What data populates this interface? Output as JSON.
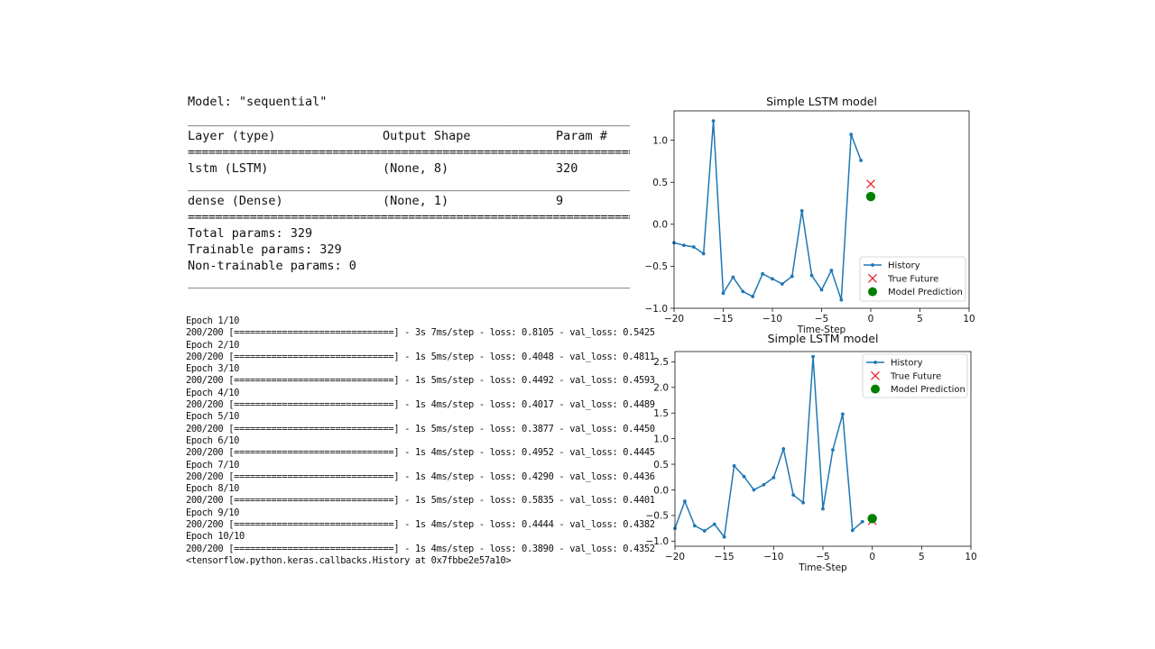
{
  "summary": {
    "title": "Model: \"sequential\"",
    "rule_dash": "_________________________________________________________________",
    "rule_eq": "=================================================================",
    "header": {
      "layer": "Layer (type)",
      "output": "Output Shape",
      "params": "Param #"
    },
    "layers": [
      {
        "layer": "lstm (LSTM)",
        "output": "(None, 8)",
        "params": "320"
      },
      {
        "layer": "dense (Dense)",
        "output": "(None, 1)",
        "params": "9"
      }
    ],
    "total": "Total params: 329",
    "trainable": "Trainable params: 329",
    "non_trainable": "Non-trainable params: 0"
  },
  "training_log": {
    "lines": [
      "Epoch 1/10",
      "200/200 [==============================] - 3s 7ms/step - loss: 0.8105 - val_loss: 0.5425",
      "Epoch 2/10",
      "200/200 [==============================] - 1s 5ms/step - loss: 0.4048 - val_loss: 0.4811",
      "Epoch 3/10",
      "200/200 [==============================] - 1s 5ms/step - loss: 0.4492 - val_loss: 0.4593",
      "Epoch 4/10",
      "200/200 [==============================] - 1s 4ms/step - loss: 0.4017 - val_loss: 0.4489",
      "Epoch 5/10",
      "200/200 [==============================] - 1s 5ms/step - loss: 0.3877 - val_loss: 0.4450",
      "Epoch 6/10",
      "200/200 [==============================] - 1s 4ms/step - loss: 0.4952 - val_loss: 0.4445",
      "Epoch 7/10",
      "200/200 [==============================] - 1s 4ms/step - loss: 0.4290 - val_loss: 0.4436",
      "Epoch 8/10",
      "200/200 [==============================] - 1s 5ms/step - loss: 0.5835 - val_loss: 0.4401",
      "Epoch 9/10",
      "200/200 [==============================] - 1s 4ms/step - loss: 0.4444 - val_loss: 0.4382",
      "Epoch 10/10",
      "200/200 [==============================] - 1s 4ms/step - loss: 0.3890 - val_loss: 0.4352",
      "<tensorflow.python.keras.callbacks.History at 0x7fbbe2e57a10>"
    ]
  },
  "colors": {
    "history": "#1f77b4",
    "true_future": "#e8262b",
    "prediction": "#008000"
  },
  "chart_data": [
    {
      "type": "line",
      "title": "Simple LSTM model",
      "xlabel": "Time-Step",
      "ylabel": "",
      "xlim": [
        -20,
        10
      ],
      "ylim": [
        -1.0,
        1.35
      ],
      "xticks": [
        -20,
        -15,
        -10,
        -5,
        0,
        5,
        10
      ],
      "yticks": [
        -1.0,
        -0.5,
        0.0,
        0.5,
        1.0
      ],
      "legend_position": "lower-right",
      "series": [
        {
          "name": "History",
          "marker": "dot",
          "x": [
            -20,
            -19,
            -18,
            -17,
            -16,
            -15,
            -14,
            -13,
            -12,
            -11,
            -10,
            -9,
            -8,
            -7,
            -6,
            -5,
            -4,
            -3,
            -2,
            -1
          ],
          "y": [
            -0.22,
            -0.25,
            -0.27,
            -0.35,
            1.23,
            -0.82,
            -0.63,
            -0.8,
            -0.86,
            -0.59,
            -0.65,
            -0.71,
            -0.62,
            0.16,
            -0.61,
            -0.78,
            -0.55,
            -0.9,
            1.07,
            0.76
          ]
        },
        {
          "name": "True Future",
          "marker": "x",
          "x": [
            0
          ],
          "y": [
            0.48
          ]
        },
        {
          "name": "Model Prediction",
          "marker": "circle",
          "x": [
            0
          ],
          "y": [
            0.33
          ]
        }
      ]
    },
    {
      "type": "line",
      "title": "Simple LSTM model",
      "xlabel": "Time-Step",
      "ylabel": "",
      "xlim": [
        -20,
        10
      ],
      "ylim": [
        -1.1,
        2.7
      ],
      "xticks": [
        -20,
        -15,
        -10,
        -5,
        0,
        5,
        10
      ],
      "yticks": [
        -1.0,
        -0.5,
        0.0,
        0.5,
        1.0,
        1.5,
        2.0,
        2.5
      ],
      "legend_position": "upper-right",
      "series": [
        {
          "name": "History",
          "marker": "dot",
          "x": [
            -20,
            -19,
            -18,
            -17,
            -16,
            -15,
            -14,
            -13,
            -12,
            -11,
            -10,
            -9,
            -8,
            -7,
            -6,
            -5,
            -4,
            -3,
            -2,
            -1
          ],
          "y": [
            -0.75,
            -0.22,
            -0.7,
            -0.8,
            -0.67,
            -0.92,
            0.47,
            0.26,
            0.0,
            0.1,
            0.24,
            0.8,
            -0.1,
            -0.25,
            2.6,
            -0.37,
            0.78,
            1.48,
            -0.79,
            -0.62
          ]
        },
        {
          "name": "True Future",
          "marker": "x",
          "x": [
            0
          ],
          "y": [
            -0.6
          ]
        },
        {
          "name": "Model Prediction",
          "marker": "circle",
          "x": [
            0
          ],
          "y": [
            -0.56
          ]
        }
      ]
    }
  ]
}
